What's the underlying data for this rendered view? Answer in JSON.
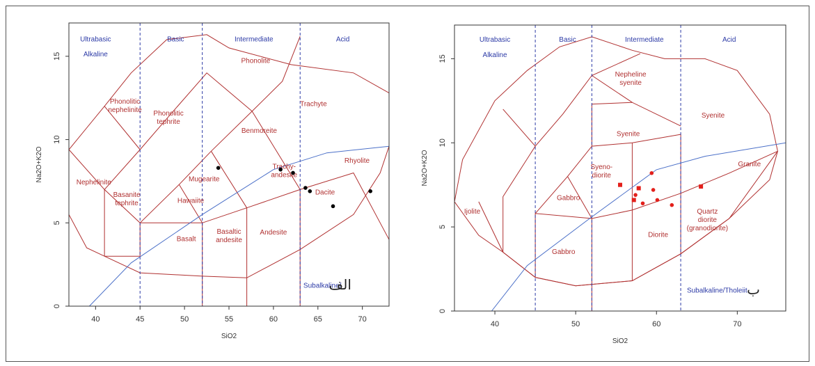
{
  "colors": {
    "field_line": "#b03030",
    "field_text": "#b03030",
    "zone_text": "#2c3aa6",
    "divider": "#2c3aa6",
    "trend_line": "#4a6fc8",
    "marker_a": "#000000",
    "marker_b": "#e3201b"
  },
  "chart_data": [
    {
      "type": "scatter",
      "panel_tag": "الف",
      "xlabel": "SiO2",
      "ylabel": "Na2O+K2O",
      "xlim": [
        37,
        73
      ],
      "ylim": [
        0,
        17
      ],
      "xticks": [
        40,
        45,
        50,
        55,
        60,
        65,
        70
      ],
      "yticks": [
        0,
        5,
        10,
        15
      ],
      "zone_labels": [
        "Ultrabasic",
        "Basic",
        "Intermediate",
        "Acid",
        "Alkaline",
        "Subalkaline/"
      ],
      "dividers_x": [
        45,
        52,
        63
      ],
      "field_labels": [
        "Phonolite",
        "Phonolitic nephelinite",
        "Phonolitic tephrite",
        "Trachyte",
        "Benmoreite",
        "Rhyolite",
        "Trachy- andesite",
        "Mugearite",
        "Nephelinite",
        "Basanite tephrite",
        "Hawaiite",
        "Dacite",
        "Basalt",
        "Basaltic andesite",
        "Andesite"
      ],
      "series": [
        {
          "marker": "circle",
          "points": [
            [
              53.8,
              8.3
            ],
            [
              60.8,
              8.2
            ],
            [
              62.2,
              8.0
            ],
            [
              63.6,
              7.1
            ],
            [
              64.1,
              6.9
            ],
            [
              66.7,
              6.0
            ],
            [
              70.9,
              6.9
            ]
          ]
        }
      ]
    },
    {
      "type": "scatter",
      "panel_tag": "ب",
      "xlabel": "SiO2",
      "ylabel": "Na2O+K2O",
      "xlim": [
        35,
        76
      ],
      "ylim": [
        0,
        17
      ],
      "xticks": [
        40,
        50,
        60,
        70
      ],
      "yticks": [
        0,
        5,
        10,
        15
      ],
      "zone_labels": [
        "Ultrabasic",
        "Basic",
        "Intermediate",
        "Acid",
        "Alkaline",
        "Subalkaline/Tholeiit"
      ],
      "dividers_x": [
        45,
        52,
        63
      ],
      "field_labels": [
        "Nepheline syenite",
        "Syenite",
        "Syenite",
        "Syeno- diorite",
        "Granite",
        "Ijolite",
        "Gabbro",
        "Quartz diorite (granodiorite)",
        "Diorite",
        "Gabbro"
      ],
      "series": [
        {
          "marker": "square",
          "points": [
            [
              55.5,
              7.5
            ],
            [
              57.8,
              7.3
            ],
            [
              57.2,
              6.6
            ],
            [
              65.5,
              7.4
            ]
          ]
        },
        {
          "marker": "circle",
          "points": [
            [
              59.4,
              8.2
            ],
            [
              57.4,
              6.9
            ],
            [
              59.6,
              7.2
            ],
            [
              58.3,
              6.4
            ],
            [
              60.1,
              6.6
            ],
            [
              61.9,
              6.3
            ]
          ]
        }
      ]
    }
  ]
}
